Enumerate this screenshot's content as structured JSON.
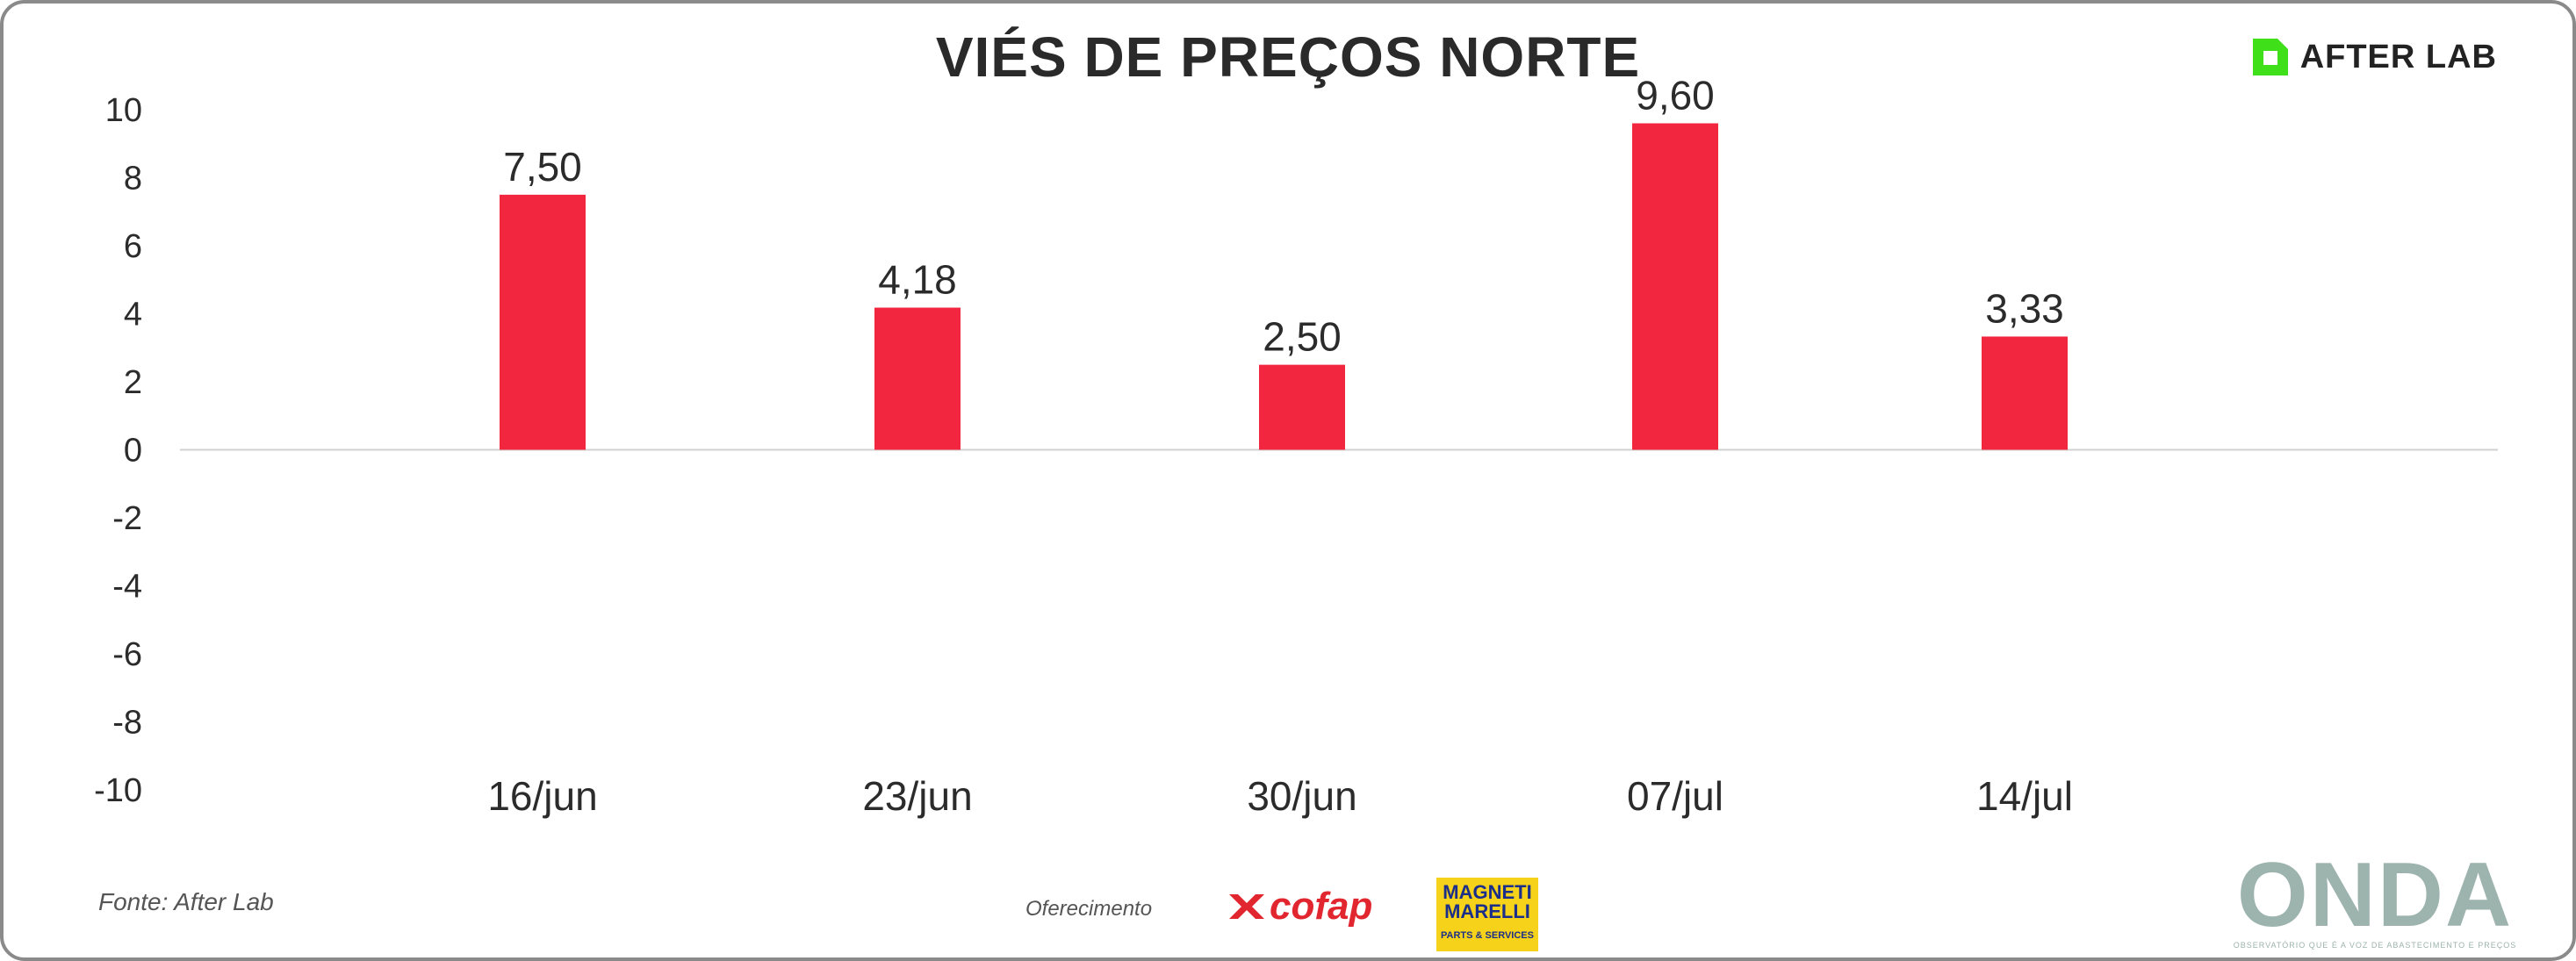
{
  "header": {
    "title": "VIÉS DE PREÇOS NORTE",
    "brand_logo": "AFTER LAB"
  },
  "chart_data": {
    "type": "bar",
    "title": "VIÉS DE PREÇOS NORTE",
    "categories": [
      "16/jun",
      "23/jun",
      "30/jun",
      "07/jul",
      "14/jul"
    ],
    "series": [
      {
        "values": [
          7.5,
          4.18,
          2.5,
          9.6,
          3.33
        ]
      }
    ],
    "data_labels": [
      "7,50",
      "4,18",
      "2,50",
      "9,60",
      "3,33"
    ],
    "y_ticks": [
      "10",
      "8",
      "6",
      "4",
      "2",
      "0",
      "-2",
      "-4",
      "-6",
      "-8",
      "-10"
    ],
    "ylim": [
      -10,
      10
    ],
    "grid": false,
    "legend": "none",
    "bar_color": "#f2263f"
  },
  "footer": {
    "source": "Fonte: After Lab",
    "sponsor_label": "Oferecimento",
    "sponsor_logos": [
      "cofap",
      "MAGNETI MARELLI"
    ],
    "magneti_subtitle": "PARTS & SERVICES",
    "onda_logo": "ONDA",
    "onda_tagline": "OBSERVATÓRIO QUE É A VOZ DE ABASTECIMENTO E PREÇOS"
  },
  "colors": {
    "bar": "#f2263f",
    "brand_green": "#3fe01a",
    "cofap_red": "#e2262f",
    "magneti_yellow": "#f6d21a",
    "onda_teal": "#9db3ad"
  }
}
